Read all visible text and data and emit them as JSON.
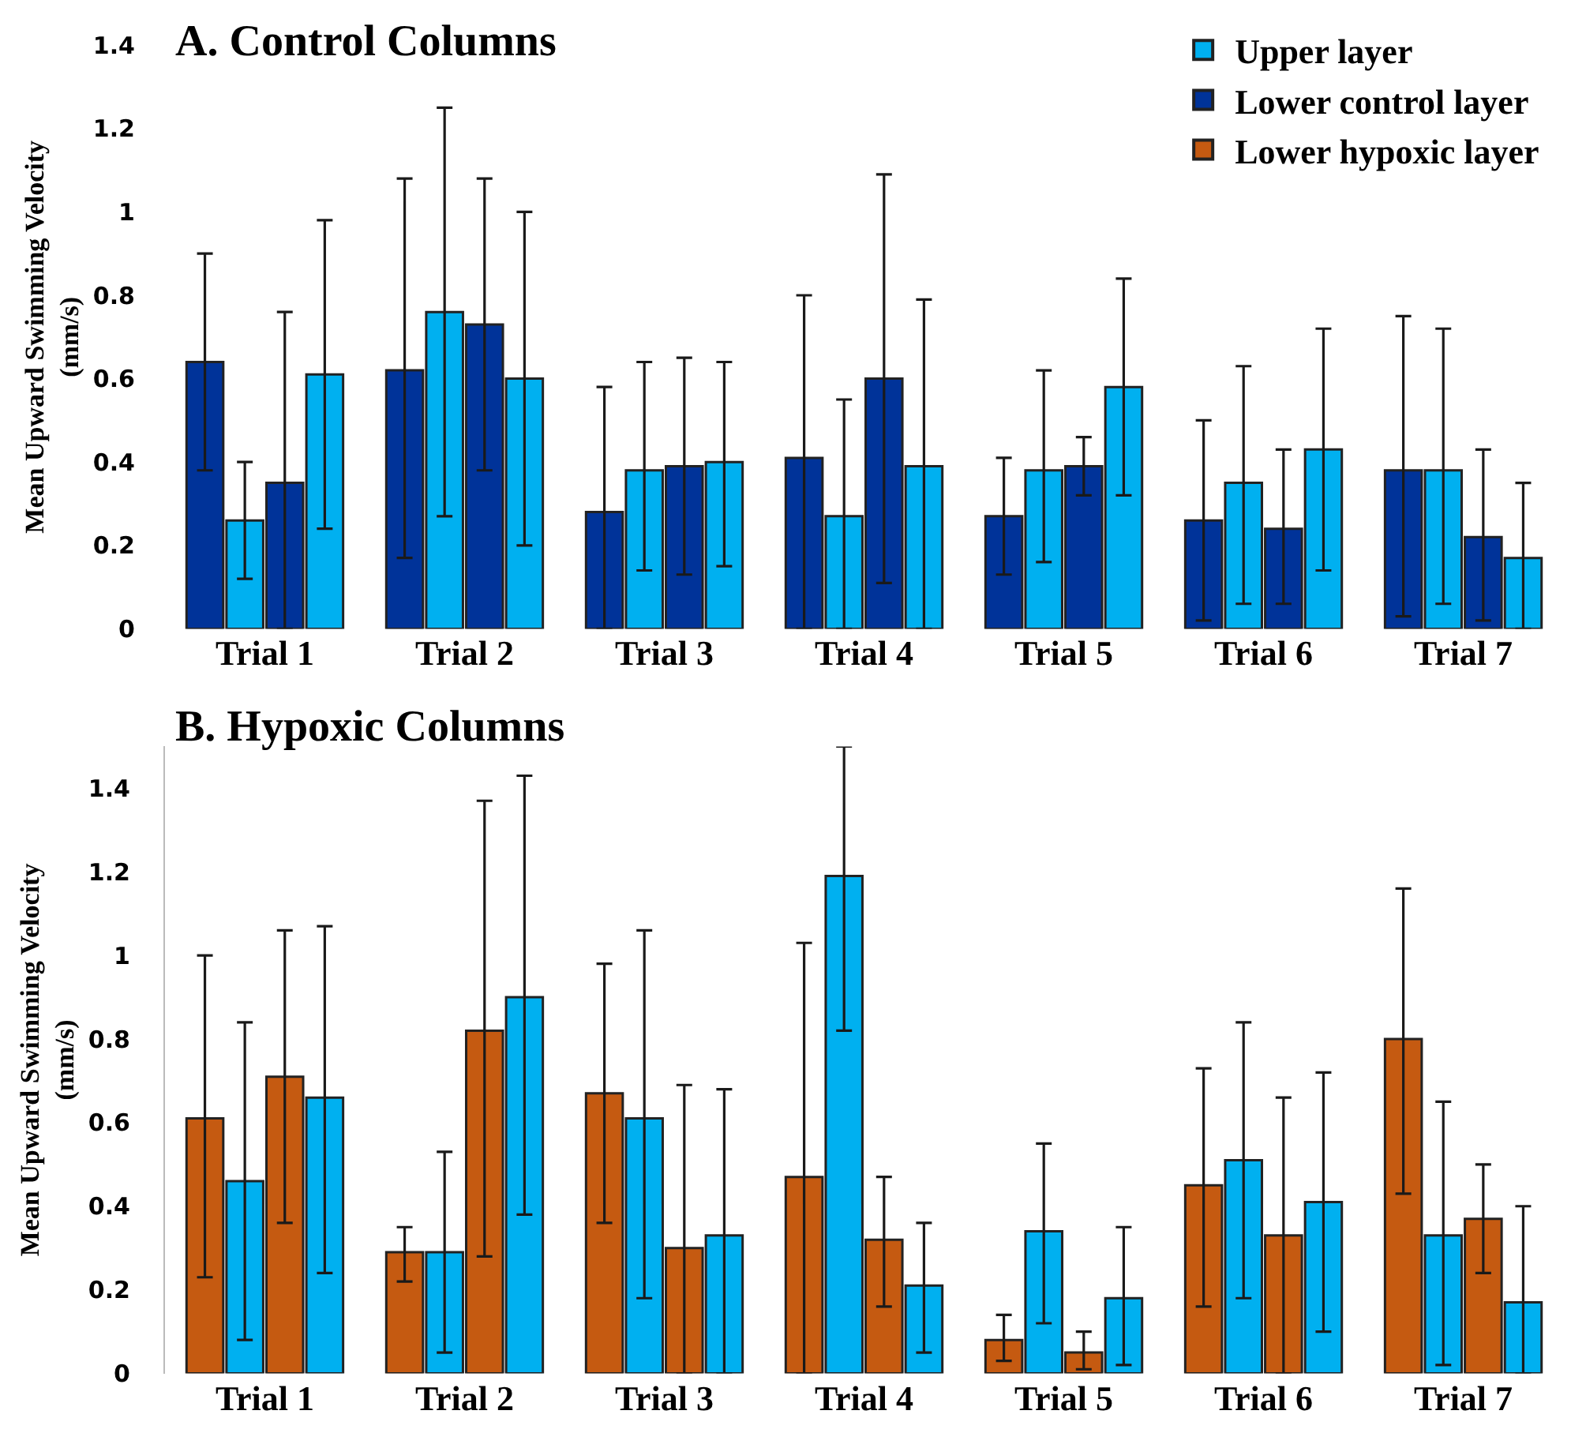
{
  "chart_data": [
    {
      "type": "bar",
      "title": "A. Control Columns",
      "ylabel": "Mean Upward Swimming Velocity\n(mm/s)",
      "categories": [
        "Trial 1",
        "Trial 2",
        "Trial 3",
        "Trial 4",
        "Trial 5",
        "Trial 6",
        "Trial 7"
      ],
      "ylim": [
        0,
        1.4
      ],
      "yticks": [
        0,
        0.2,
        0.4,
        0.6,
        0.8,
        1,
        1.2,
        1.4
      ],
      "legend": "top right",
      "series": [
        {
          "name": "Lower control layer",
          "color": "#003399",
          "values": [
            0.64,
            0.62,
            0.28,
            0.41,
            0.27,
            0.26,
            0.38
          ],
          "errors": [
            [
              0.38,
              0.9
            ],
            [
              0.17,
              1.08
            ],
            [
              0,
              0.58
            ],
            [
              0,
              0.8
            ],
            [
              0.13,
              0.41
            ],
            [
              0.02,
              0.5
            ],
            [
              0.03,
              0.75
            ]
          ]
        },
        {
          "name": "Upper layer",
          "color": "#00b0f0",
          "values": [
            0.26,
            0.76,
            0.38,
            0.27,
            0.38,
            0.35,
            0.38
          ],
          "errors": [
            [
              0.12,
              0.4
            ],
            [
              0.27,
              1.25
            ],
            [
              0.14,
              0.64
            ],
            [
              0,
              0.55
            ],
            [
              0.16,
              0.62
            ],
            [
              0.06,
              0.63
            ],
            [
              0.06,
              0.72
            ]
          ]
        },
        {
          "color": "#003399",
          "values": [
            0.35,
            0.73,
            0.39,
            0.6,
            0.39,
            0.24,
            0.22
          ],
          "errors": [
            [
              0,
              0.76
            ],
            [
              0.38,
              1.08
            ],
            [
              0.13,
              0.65
            ],
            [
              0.11,
              1.09
            ],
            [
              0.32,
              0.46
            ],
            [
              0.06,
              0.43
            ],
            [
              0.02,
              0.43
            ]
          ]
        },
        {
          "color": "#00b0f0",
          "values": [
            0.61,
            0.6,
            0.4,
            0.39,
            0.58,
            0.43,
            0.17
          ],
          "errors": [
            [
              0.24,
              0.98
            ],
            [
              0.2,
              1.0
            ],
            [
              0.15,
              0.64
            ],
            [
              0,
              0.79
            ],
            [
              0.32,
              0.84
            ],
            [
              0.14,
              0.72
            ],
            [
              0,
              0.35
            ]
          ]
        }
      ]
    },
    {
      "type": "bar",
      "title": "B. Hypoxic Columns",
      "ylabel": "Mean Upward Swimming Velocity\n(mm/s)",
      "categories": [
        "Trial 1",
        "Trial 2",
        "Trial 3",
        "Trial 4",
        "Trial 5",
        "Trial 6",
        "Trial 7"
      ],
      "ylim": [
        0,
        1.5
      ],
      "yticks": [
        0,
        0.2,
        0.4,
        0.6,
        0.8,
        1,
        1.2,
        1.4
      ],
      "series": [
        {
          "name": "Lower hypoxic layer",
          "color": "#c55a11",
          "values": [
            0.61,
            0.29,
            0.67,
            0.47,
            0.08,
            0.45,
            0.8
          ],
          "errors": [
            [
              0.23,
              1.0
            ],
            [
              0.22,
              0.35
            ],
            [
              0.36,
              0.98
            ],
            [
              0,
              1.03
            ],
            [
              0.03,
              0.14
            ],
            [
              0.16,
              0.73
            ],
            [
              0.43,
              1.16
            ]
          ]
        },
        {
          "color": "#00b0f0",
          "values": [
            0.46,
            0.29,
            0.61,
            1.19,
            0.34,
            0.51,
            0.33
          ],
          "errors": [
            [
              0.08,
              0.84
            ],
            [
              0.05,
              0.53
            ],
            [
              0.18,
              1.06
            ],
            [
              0.82,
              1.5
            ],
            [
              0.12,
              0.55
            ],
            [
              0.18,
              0.84
            ],
            [
              0.02,
              0.65
            ]
          ]
        },
        {
          "color": "#c55a11",
          "values": [
            0.71,
            0.82,
            0.3,
            0.32,
            0.05,
            0.33,
            0.37
          ],
          "errors": [
            [
              0.36,
              1.06
            ],
            [
              0.28,
              1.37
            ],
            [
              0,
              0.69
            ],
            [
              0.16,
              0.47
            ],
            [
              0.01,
              0.1
            ],
            [
              0,
              0.66
            ],
            [
              0.24,
              0.5
            ]
          ]
        },
        {
          "color": "#00b0f0",
          "values": [
            0.66,
            0.9,
            0.33,
            0.21,
            0.18,
            0.41,
            0.17
          ],
          "errors": [
            [
              0.24,
              1.07
            ],
            [
              0.38,
              1.43
            ],
            [
              0,
              0.68
            ],
            [
              0.05,
              0.36
            ],
            [
              0.02,
              0.35
            ],
            [
              0.1,
              0.72
            ],
            [
              0,
              0.4
            ]
          ]
        }
      ]
    }
  ]
}
